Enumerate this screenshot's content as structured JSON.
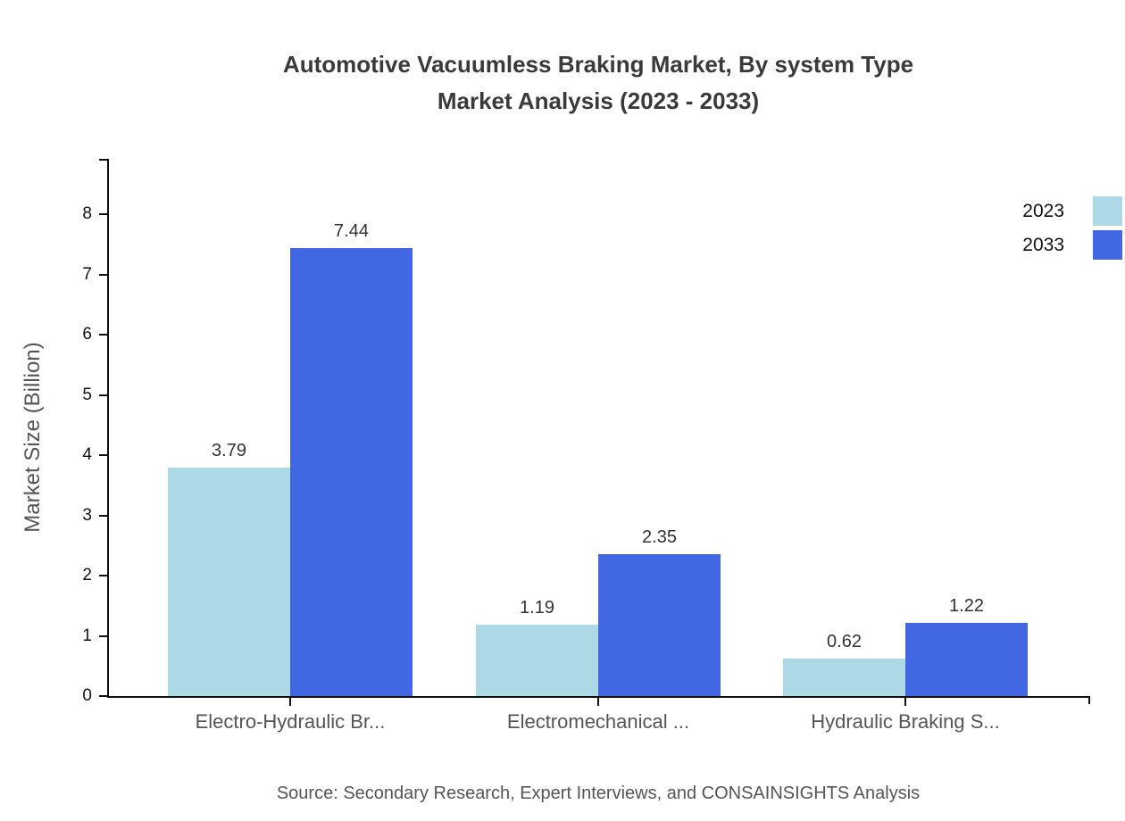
{
  "title": {
    "line1": "Automotive Vacuumless Braking Market, By system Type",
    "line2": "Market Analysis (2023 - 2033)"
  },
  "colors": {
    "series_2023": "#ADD8E6",
    "series_2033": "#4267E2",
    "axis": "#111111",
    "title_text": "#3A3A3A",
    "muted_text": "#555555"
  },
  "legend": {
    "position": "top-right",
    "items": [
      {
        "label": "2023",
        "color": "#ADD8E6"
      },
      {
        "label": "2033",
        "color": "#4267E2"
      }
    ]
  },
  "source_note": "Source: Secondary Research, Expert Interviews, and CONSAINSIGHTS Analysis",
  "chart_data": {
    "type": "bar",
    "title": "Automotive Vacuumless Braking Market, By system Type Market Analysis (2023 - 2033)",
    "categories": [
      "Electro-Hydraulic Br...",
      "Electromechanical ...",
      "Hydraulic Braking S..."
    ],
    "series": [
      {
        "name": "2023",
        "color": "#ADD8E6",
        "values": [
          3.79,
          1.19,
          0.62
        ]
      },
      {
        "name": "2033",
        "color": "#4267E2",
        "values": [
          7.44,
          2.35,
          1.22
        ]
      }
    ],
    "xlabel": "",
    "ylabel": "Market Size (Billion)",
    "ylim": [
      0,
      8.9
    ],
    "yticks": [
      0,
      1,
      2,
      3,
      4,
      5,
      6,
      7,
      8
    ],
    "grid": false,
    "value_labels": true,
    "value_label_format": "0.00",
    "legend_position": "top-right"
  }
}
